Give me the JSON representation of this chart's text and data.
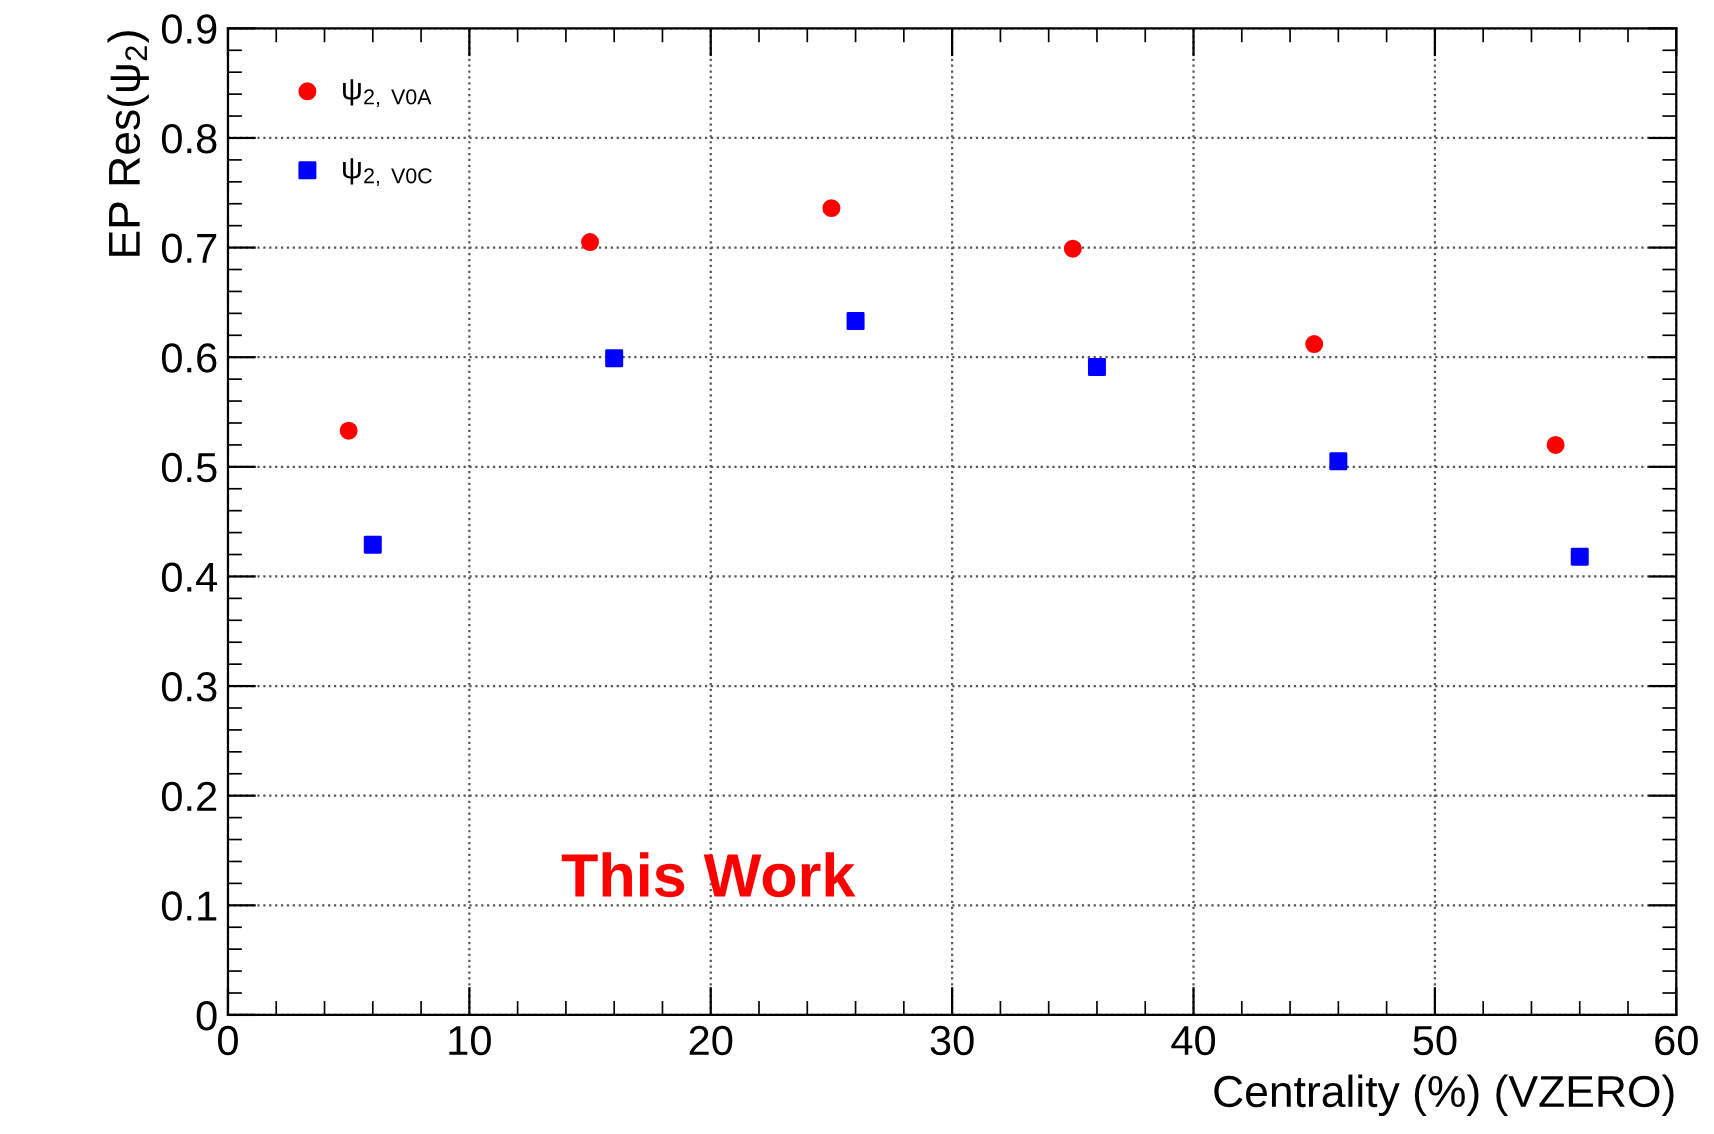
{
  "chart_data": {
    "type": "scatter",
    "xlabel": "Centrality (%) (VZERO)",
    "ylabel": "EP Res(ψ$_{2}$)",
    "xlim": [
      0,
      60
    ],
    "xticks": [
      0,
      10,
      20,
      30,
      40,
      50,
      60
    ],
    "ylim": [
      0,
      0.9
    ],
    "yticks": [
      0,
      0.1,
      0.2,
      0.3,
      0.4,
      0.5,
      0.6,
      0.7,
      0.8,
      0.9
    ],
    "grid": true,
    "legend": "top left",
    "annotations": [
      "This Work"
    ],
    "series": [
      {
        "name": "ψ$_{2, V0A}$",
        "color": "#ff0000",
        "marker": "circle",
        "x": [
          5,
          15,
          25,
          35,
          45,
          55
        ],
        "values": [
          0.533,
          0.705,
          0.736,
          0.699,
          0.612,
          0.52
        ]
      },
      {
        "name": "ψ$_{2, V0C}$",
        "color": "#0000ff",
        "marker": "square",
        "x": [
          6,
          16,
          26,
          36,
          46,
          56
        ],
        "values": [
          0.429,
          0.599,
          0.633,
          0.591,
          0.505,
          0.418
        ]
      }
    ]
  }
}
